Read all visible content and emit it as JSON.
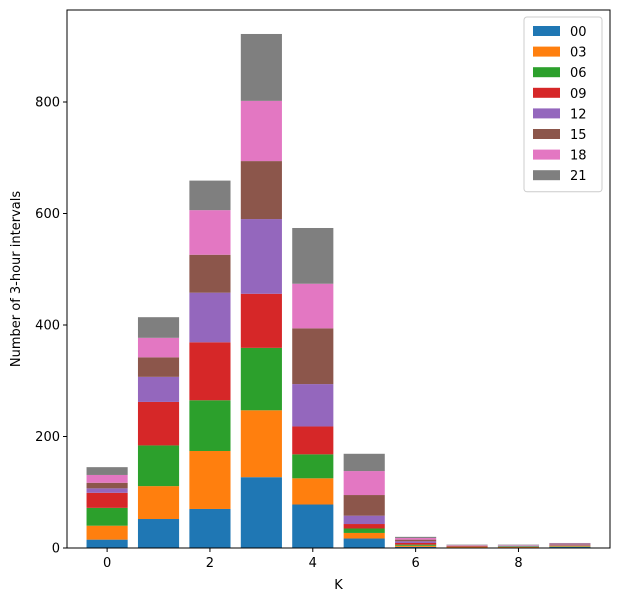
{
  "chart_data": {
    "type": "bar",
    "stacked": true,
    "categories": [
      0,
      1,
      2,
      3,
      4,
      5,
      6,
      7,
      8,
      9
    ],
    "series": [
      {
        "name": "00",
        "color": "#1f77b4",
        "values": [
          15,
          52,
          70,
          127,
          78,
          17,
          2,
          1,
          1,
          2
        ]
      },
      {
        "name": "03",
        "color": "#ff7f0e",
        "values": [
          25,
          59,
          104,
          120,
          47,
          10,
          2,
          1,
          1,
          1
        ]
      },
      {
        "name": "06",
        "color": "#2ca02c",
        "values": [
          32,
          73,
          91,
          112,
          43,
          8,
          2,
          0,
          1,
          1
        ]
      },
      {
        "name": "09",
        "color": "#d62728",
        "values": [
          27,
          78,
          104,
          97,
          50,
          8,
          3,
          1,
          0,
          1
        ]
      },
      {
        "name": "12",
        "color": "#9467bd",
        "values": [
          8,
          45,
          89,
          134,
          76,
          15,
          3,
          0,
          1,
          1
        ]
      },
      {
        "name": "15",
        "color": "#8c564b",
        "values": [
          10,
          35,
          68,
          104,
          100,
          37,
          3,
          1,
          0,
          1
        ]
      },
      {
        "name": "18",
        "color": "#e377c2",
        "values": [
          14,
          35,
          80,
          108,
          80,
          43,
          3,
          1,
          1,
          1
        ]
      },
      {
        "name": "21",
        "color": "#7f7f7f",
        "values": [
          14,
          37,
          53,
          120,
          100,
          31,
          2,
          1,
          1,
          1
        ]
      }
    ],
    "xlabel": "K",
    "ylabel": "Number of 3-hour intervals",
    "xlim": [
      -0.78,
      9.78
    ],
    "ylim": [
      0,
      965
    ],
    "xticks": [
      0,
      2,
      4,
      6,
      8
    ],
    "yticks": [
      0,
      200,
      400,
      600,
      800
    ],
    "grid": false,
    "legend": "top-right"
  }
}
